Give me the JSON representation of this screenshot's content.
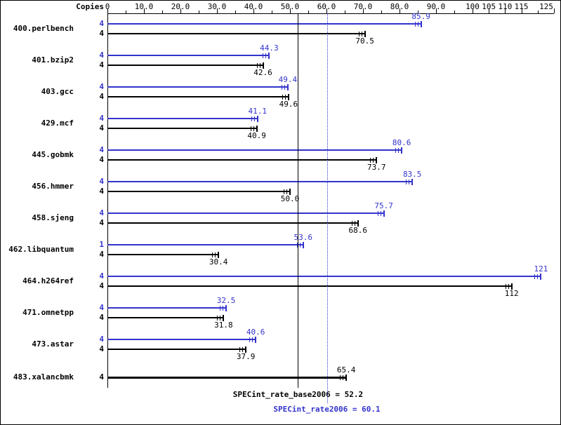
{
  "copies_label": "Copies",
  "chart_data": {
    "type": "bar",
    "orientation": "horizontal",
    "title": "",
    "xlabel": "",
    "ylabel": "Copies",
    "axis": {
      "xlim": [
        0,
        125
      ],
      "scale_break_at": 100,
      "major_ticks": [
        {
          "value": 0,
          "label": "0"
        },
        {
          "value": 10,
          "label": "10.0"
        },
        {
          "value": 20,
          "label": "20.0"
        },
        {
          "value": 30,
          "label": "30.0"
        },
        {
          "value": 40,
          "label": "40.0"
        },
        {
          "value": 50,
          "label": "50.0"
        },
        {
          "value": 60,
          "label": "60.0"
        },
        {
          "value": 70,
          "label": "70.0"
        },
        {
          "value": 80,
          "label": "80.0"
        },
        {
          "value": 90,
          "label": "90.0"
        },
        {
          "value": 100,
          "label": "100"
        },
        {
          "value": 105,
          "label": "105"
        },
        {
          "value": 110,
          "label": "110"
        },
        {
          "value": 115,
          "label": "115"
        },
        {
          "value": 125,
          "label": "125"
        }
      ],
      "minor_ticks": [
        5,
        15,
        25,
        35,
        45,
        55,
        65,
        75,
        85,
        95,
        120
      ]
    },
    "colors": {
      "peak": "#3333cc",
      "base": "#000000"
    },
    "benchmarks": [
      {
        "name": "400.perlbench",
        "bars": [
          {
            "series": "peak",
            "copies": "4",
            "value": 85.9,
            "label": "85.9"
          },
          {
            "series": "base",
            "copies": "4",
            "value": 70.5,
            "label": "70.5"
          }
        ]
      },
      {
        "name": "401.bzip2",
        "bars": [
          {
            "series": "peak",
            "copies": "4",
            "value": 44.3,
            "label": "44.3"
          },
          {
            "series": "base",
            "copies": "4",
            "value": 42.6,
            "label": "42.6"
          }
        ]
      },
      {
        "name": "403.gcc",
        "bars": [
          {
            "series": "peak",
            "copies": "4",
            "value": 49.4,
            "label": "49.4"
          },
          {
            "series": "base",
            "copies": "4",
            "value": 49.6,
            "label": "49.6"
          }
        ]
      },
      {
        "name": "429.mcf",
        "bars": [
          {
            "series": "peak",
            "copies": "4",
            "value": 41.1,
            "label": "41.1"
          },
          {
            "series": "base",
            "copies": "4",
            "value": 40.9,
            "label": "40.9"
          }
        ]
      },
      {
        "name": "445.gobmk",
        "bars": [
          {
            "series": "peak",
            "copies": "4",
            "value": 80.6,
            "label": "80.6"
          },
          {
            "series": "base",
            "copies": "4",
            "value": 73.7,
            "label": "73.7"
          }
        ]
      },
      {
        "name": "456.hmmer",
        "bars": [
          {
            "series": "peak",
            "copies": "4",
            "value": 83.5,
            "label": "83.5"
          },
          {
            "series": "base",
            "copies": "4",
            "value": 50.0,
            "label": "50.0"
          }
        ]
      },
      {
        "name": "458.sjeng",
        "bars": [
          {
            "series": "peak",
            "copies": "4",
            "value": 75.7,
            "label": "75.7"
          },
          {
            "series": "base",
            "copies": "4",
            "value": 68.6,
            "label": "68.6"
          }
        ]
      },
      {
        "name": "462.libquantum",
        "bars": [
          {
            "series": "peak",
            "copies": "1",
            "value": 53.6,
            "label": "53.6"
          },
          {
            "series": "base",
            "copies": "4",
            "value": 30.4,
            "label": "30.4"
          }
        ]
      },
      {
        "name": "464.h264ref",
        "bars": [
          {
            "series": "peak",
            "copies": "4",
            "value": 121,
            "label": "121"
          },
          {
            "series": "base",
            "copies": "4",
            "value": 112,
            "label": "112"
          }
        ]
      },
      {
        "name": "471.omnetpp",
        "bars": [
          {
            "series": "peak",
            "copies": "4",
            "value": 32.5,
            "label": "32.5"
          },
          {
            "series": "base",
            "copies": "4",
            "value": 31.8,
            "label": "31.8"
          }
        ]
      },
      {
        "name": "473.astar",
        "bars": [
          {
            "series": "peak",
            "copies": "4",
            "value": 40.6,
            "label": "40.6"
          },
          {
            "series": "base",
            "copies": "4",
            "value": 37.9,
            "label": "37.9"
          }
        ]
      },
      {
        "name": "483.xalancbmk",
        "bars": [
          {
            "series": "base",
            "copies": "4",
            "value": 65.4,
            "label": "65.4",
            "thick": true
          }
        ]
      }
    ],
    "reference_lines": [
      {
        "name": "base_mean",
        "label": "SPECint_rate_base2006 = 52.2",
        "value": 52.2,
        "style": "solid",
        "color": "#000000"
      },
      {
        "name": "peak_mean",
        "label": "SPECint_rate2006 = 60.1",
        "value": 60.1,
        "style": "dotted",
        "color": "#3333cc"
      }
    ]
  }
}
